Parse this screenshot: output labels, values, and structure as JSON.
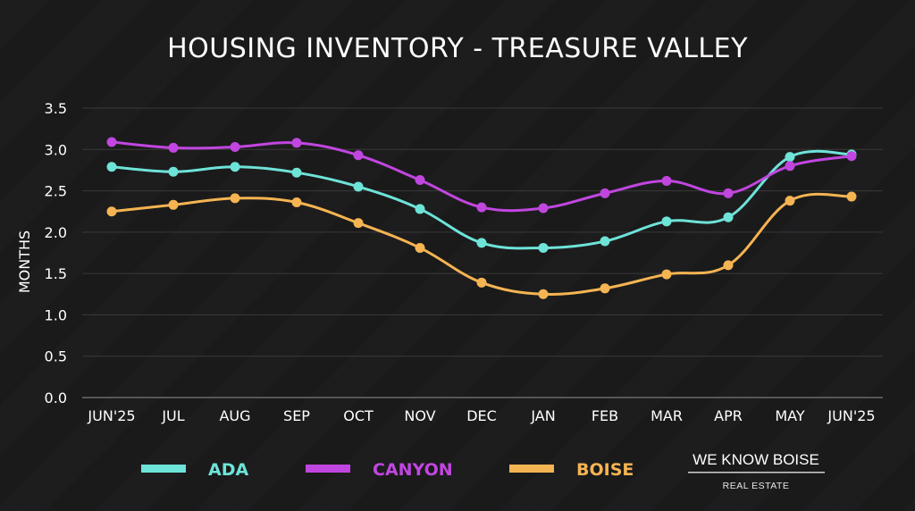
{
  "chart_data": {
    "type": "line",
    "title": "HOUSING INVENTORY - TREASURE VALLEY",
    "xlabel": "",
    "ylabel": "MONTHS",
    "ylim": [
      0,
      3.5
    ],
    "yticks": [
      "0.0",
      "0.5",
      "1.0",
      "1.5",
      "2.0",
      "2.5",
      "3.0",
      "3.5"
    ],
    "ytick_values": [
      0,
      0.5,
      1.0,
      1.5,
      2.0,
      2.5,
      3.0,
      3.5
    ],
    "grid": true,
    "legend_position": "bottom",
    "categories": [
      "JUN'25",
      "JUL",
      "AUG",
      "SEP",
      "OCT",
      "NOV",
      "DEC",
      "JAN",
      "FEB",
      "MAR",
      "APR",
      "MAY",
      "JUN'25"
    ],
    "series": [
      {
        "name": "ADA",
        "color": "#6ee3d8",
        "values": [
          2.79,
          2.73,
          2.79,
          2.72,
          2.55,
          2.28,
          1.87,
          1.81,
          1.89,
          2.13,
          2.18,
          2.91,
          2.94
        ]
      },
      {
        "name": "CANYON",
        "color": "#c146e0",
        "values": [
          3.09,
          3.02,
          3.03,
          3.08,
          2.93,
          2.63,
          2.3,
          2.29,
          2.47,
          2.62,
          2.47,
          2.8,
          2.92
        ]
      },
      {
        "name": "BOISE",
        "color": "#f5b452",
        "values": [
          2.25,
          2.33,
          2.41,
          2.36,
          2.11,
          1.81,
          1.39,
          1.25,
          1.32,
          1.49,
          1.6,
          2.38,
          2.43
        ]
      }
    ]
  },
  "logo": {
    "main": "WE KNOW BOISE",
    "sub": "REAL ESTATE"
  },
  "colors": {
    "background": "#1a1a1b",
    "grid": "#3a3a3a",
    "text": "#ffffff"
  }
}
